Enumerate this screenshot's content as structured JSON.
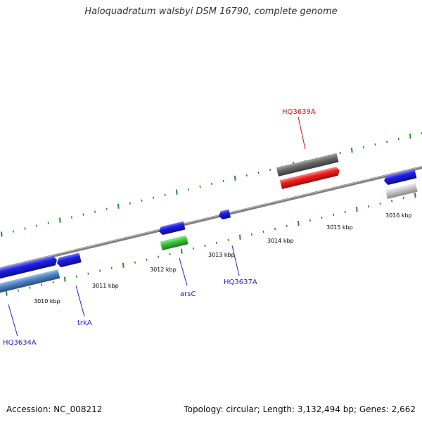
{
  "title": "Haloquadratum walsbyi DSM 16790, complete genome",
  "footer": {
    "accession": "Accession: NC_008212",
    "summary": "Topology: circular; Length: 3,132,494 bp; Genes: 2,662"
  },
  "colors": {
    "backbone": "#8c8c8c",
    "tick_green": "#2a8a2a",
    "gene_blue": "#1f1fe6",
    "gene_steel": "#4f86c6",
    "gene_green": "#3cc83c",
    "gene_red": "#ef1e1e",
    "gene_darkgray": "#6b6b6b",
    "gene_lightgray": "#c8c8c8",
    "label_blue": "#2222cc",
    "label_red": "#dd1111"
  },
  "kbp_labels": [
    "3010 kbp",
    "3011 kbp",
    "3012 kbp",
    "3013 kbp",
    "3014 kbp",
    "3015 kbp",
    "3016 kbp"
  ],
  "gene_labels": [
    "HQ3634A",
    "trkA",
    "arsC",
    "HQ3637A",
    "HQ3639A"
  ]
}
